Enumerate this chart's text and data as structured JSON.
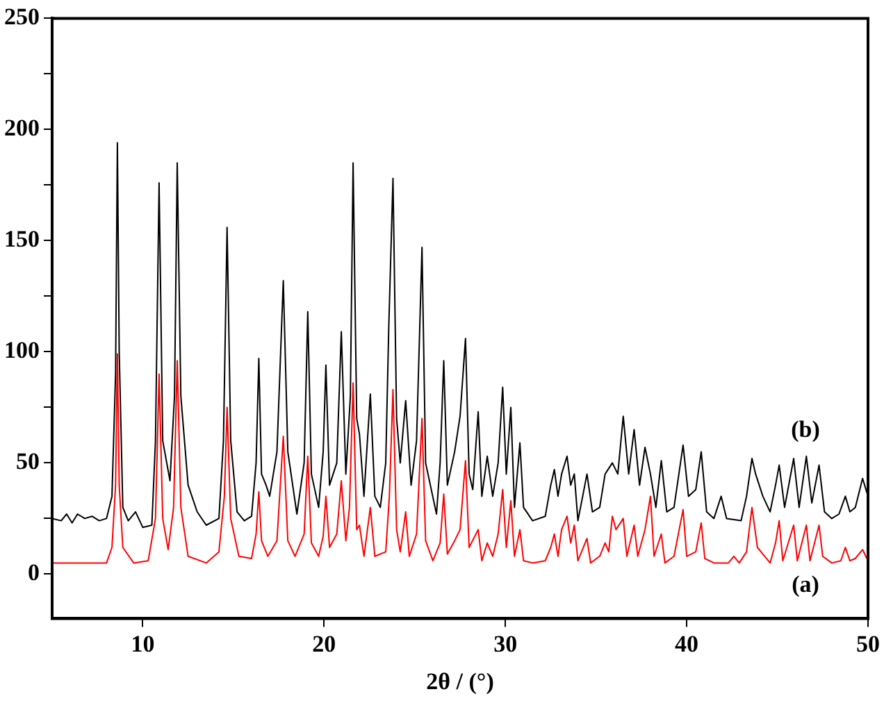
{
  "chart_data": {
    "type": "line",
    "xlabel": "2θ / (°)",
    "xlim": [
      5,
      50
    ],
    "xticks": [
      10,
      20,
      30,
      40,
      50
    ],
    "ylim": [
      -20,
      250
    ],
    "yticks": [
      0,
      {
        "value": 25,
        "label": null
      },
      50,
      {
        "value": 75,
        "label": null
      },
      100,
      {
        "value": 125,
        "label": null
      },
      150,
      {
        "value": 175,
        "label": null
      },
      200,
      {
        "value": 225,
        "label": null
      },
      250
    ],
    "grid": false,
    "legend": false,
    "marker": "none",
    "line_style": "solid",
    "series": [
      {
        "name": "(a)",
        "color": "#ff0000",
        "x": [
          5,
          8.0,
          8.3,
          8.5,
          8.6,
          8.7,
          8.9,
          9.5,
          10.3,
          10.7,
          10.9,
          11.1,
          11.4,
          11.7,
          11.9,
          12.1,
          12.5,
          13.5,
          14.2,
          14.5,
          14.65,
          14.85,
          15.3,
          16.0,
          16.25,
          16.4,
          16.55,
          16.9,
          17.4,
          17.75,
          18.0,
          18.4,
          18.9,
          19.1,
          19.3,
          19.7,
          19.95,
          20.1,
          20.3,
          20.7,
          20.95,
          21.2,
          21.4,
          21.6,
          21.8,
          21.95,
          22.2,
          22.55,
          22.8,
          23.4,
          23.6,
          23.8,
          24.0,
          24.2,
          24.5,
          24.7,
          25.1,
          25.4,
          25.6,
          26.0,
          26.4,
          26.6,
          26.8,
          27.2,
          27.5,
          27.8,
          28.0,
          28.5,
          28.7,
          29.0,
          29.3,
          29.6,
          29.85,
          30.05,
          30.3,
          30.5,
          30.8,
          31.0,
          31.5,
          32.2,
          32.5,
          32.7,
          32.9,
          33.1,
          33.4,
          33.6,
          33.8,
          34.0,
          34.5,
          34.7,
          35.2,
          35.5,
          35.7,
          35.9,
          36.1,
          36.5,
          36.7,
          37.1,
          37.3,
          37.7,
          38.0,
          38.2,
          38.6,
          38.8,
          39.3,
          39.8,
          40.0,
          40.5,
          40.8,
          41.0,
          41.5,
          42.3,
          42.6,
          42.9,
          43.3,
          43.6,
          43.9,
          44.3,
          44.6,
          44.9,
          45.1,
          45.3,
          45.9,
          46.1,
          46.6,
          46.8,
          47.3,
          47.5,
          48.0,
          48.5,
          48.75,
          49.0,
          49.3,
          49.7,
          50
        ],
        "values": [
          5,
          5,
          12,
          40,
          99,
          40,
          12,
          5,
          6,
          25,
          90,
          25,
          11,
          30,
          96,
          30,
          8,
          5,
          10,
          35,
          75,
          25,
          8,
          7,
          18,
          37,
          15,
          8,
          15,
          62,
          15,
          8,
          18,
          53,
          14,
          8,
          17,
          35,
          12,
          18,
          42,
          15,
          30,
          86,
          20,
          22,
          8,
          30,
          8,
          10,
          35,
          83,
          20,
          10,
          28,
          8,
          18,
          70,
          15,
          6,
          14,
          36,
          9,
          15,
          20,
          51,
          12,
          20,
          6,
          14,
          8,
          18,
          38,
          12,
          33,
          8,
          20,
          6,
          5,
          6,
          12,
          18,
          8,
          20,
          26,
          14,
          22,
          6,
          16,
          5,
          8,
          14,
          10,
          26,
          20,
          25,
          8,
          22,
          8,
          20,
          35,
          8,
          18,
          5,
          8,
          29,
          8,
          10,
          23,
          7,
          5,
          5,
          8,
          5,
          10,
          30,
          12,
          8,
          5,
          14,
          24,
          6,
          22,
          6,
          22,
          6,
          22,
          8,
          5,
          6,
          12,
          6,
          7,
          11,
          6
        ]
      },
      {
        "name": "(b)",
        "color": "#000000",
        "x": [
          5,
          5.5,
          5.8,
          6.1,
          6.4,
          6.8,
          7.2,
          7.6,
          8.0,
          8.3,
          8.5,
          8.6,
          8.7,
          8.9,
          9.2,
          9.6,
          10.0,
          10.5,
          10.7,
          10.9,
          11.1,
          11.5,
          11.75,
          11.9,
          12.1,
          12.5,
          13.0,
          13.5,
          14.2,
          14.45,
          14.65,
          14.85,
          15.2,
          15.6,
          16.0,
          16.25,
          16.4,
          16.55,
          16.8,
          17.0,
          17.4,
          17.75,
          18.0,
          18.5,
          18.9,
          19.1,
          19.3,
          19.7,
          19.95,
          20.1,
          20.3,
          20.7,
          20.95,
          21.2,
          21.45,
          21.6,
          21.8,
          21.95,
          22.2,
          22.55,
          22.8,
          23.1,
          23.4,
          23.57,
          23.8,
          24.0,
          24.2,
          24.5,
          24.8,
          25.1,
          25.4,
          25.6,
          26.2,
          26.4,
          26.6,
          26.8,
          27.2,
          27.5,
          27.8,
          28.0,
          28.2,
          28.5,
          28.7,
          29.0,
          29.3,
          29.6,
          29.85,
          30.05,
          30.3,
          30.5,
          30.8,
          31.0,
          31.5,
          32.2,
          32.5,
          32.7,
          32.9,
          33.1,
          33.4,
          33.6,
          33.8,
          34.0,
          34.5,
          34.8,
          35.2,
          35.5,
          35.9,
          36.2,
          36.5,
          36.8,
          37.1,
          37.4,
          37.7,
          38.0,
          38.3,
          38.6,
          38.9,
          39.3,
          39.8,
          40.1,
          40.5,
          40.8,
          41.1,
          41.5,
          41.9,
          42.2,
          43.0,
          43.3,
          43.6,
          43.8,
          44.2,
          44.6,
          44.9,
          45.1,
          45.4,
          45.9,
          46.2,
          46.6,
          46.9,
          47.3,
          47.6,
          48.0,
          48.4,
          48.75,
          49.0,
          49.3,
          49.7,
          50
        ],
        "values": [
          25,
          24,
          27,
          23,
          27,
          25,
          26,
          24,
          25,
          35,
          90,
          194,
          100,
          30,
          24,
          28,
          21,
          22,
          60,
          176,
          60,
          42,
          80,
          185,
          80,
          40,
          28,
          22,
          25,
          60,
          156,
          60,
          28,
          24,
          26,
          50,
          97,
          45,
          40,
          35,
          55,
          132,
          55,
          27,
          50,
          118,
          45,
          30,
          55,
          94,
          40,
          50,
          109,
          45,
          80,
          185,
          70,
          63,
          35,
          81,
          35,
          30,
          50,
          112,
          178,
          70,
          50,
          78,
          40,
          60,
          147,
          50,
          27,
          50,
          96,
          40,
          55,
          71,
          106,
          45,
          38,
          73,
          35,
          53,
          35,
          50,
          84,
          45,
          75,
          30,
          59,
          30,
          24,
          26,
          40,
          47,
          35,
          45,
          53,
          40,
          45,
          24,
          45,
          28,
          30,
          45,
          50,
          45,
          71,
          45,
          65,
          40,
          57,
          45,
          30,
          51,
          28,
          30,
          58,
          35,
          38,
          55,
          28,
          25,
          35,
          25,
          24,
          35,
          52,
          45,
          35,
          28,
          40,
          49,
          30,
          52,
          30,
          53,
          32,
          49,
          28,
          25,
          27,
          35,
          28,
          30,
          43,
          35
        ]
      }
    ]
  }
}
